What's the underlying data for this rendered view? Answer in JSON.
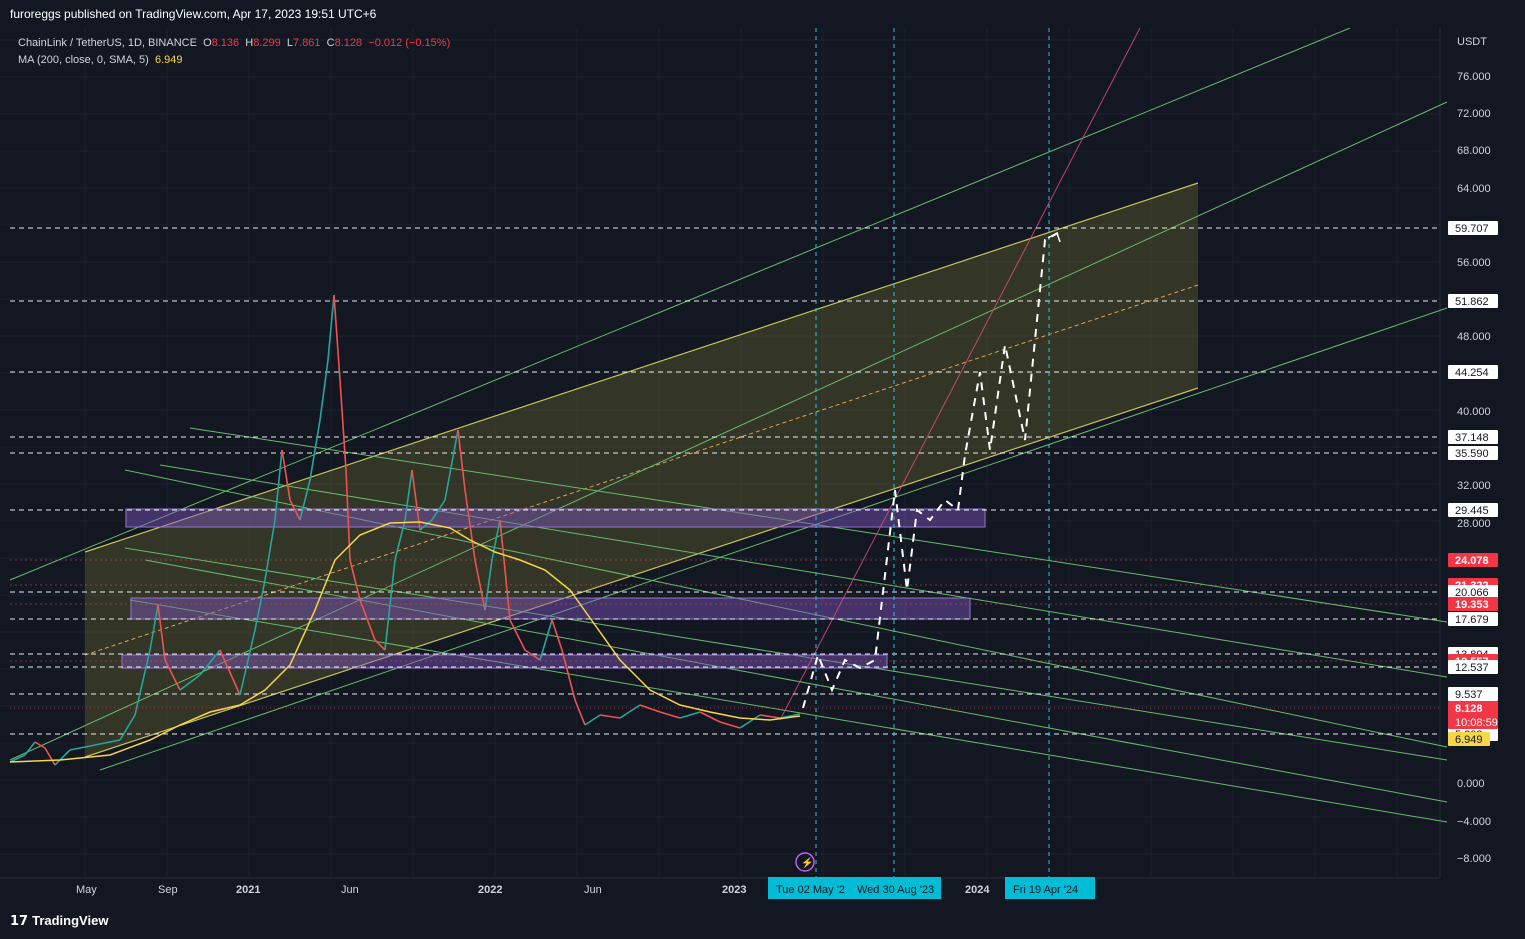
{
  "header": {
    "published": "furoreggs published on TradingView.com, Apr 17, 2023 19:51 UTC+6"
  },
  "legend": {
    "symbol": "ChainLink / TetherUS, 1D, BINANCE",
    "o_key": "O",
    "o_val": "8.136",
    "h_key": "H",
    "h_val": "8.299",
    "l_key": "L",
    "l_val": "7.861",
    "c_key": "C",
    "c_val": "8.128",
    "change": "−0.012 (−0.15%)",
    "ma_label": "MA (200, close, 0, SMA, 5)",
    "ma_value": "6.949"
  },
  "footer": {
    "logo": "TradingView",
    "logo_mark": "17"
  },
  "chart_data": {
    "type": "line",
    "title": "ChainLink / TetherUS, 1D, BINANCE",
    "currency": "USDT",
    "y_ticks": [
      "76.000",
      "72.000",
      "68.000",
      "64.000",
      "56.000",
      "48.000",
      "40.000",
      "32.000",
      "28.000",
      "0.000",
      "−4.000",
      "−8.000"
    ],
    "x_ticks": [
      "May",
      "Sep",
      "2021",
      "Jun",
      "2022",
      "Jun",
      "2023",
      "2024"
    ],
    "date_badges": [
      "Tue 02 May '2",
      "Wed 30 Aug '23",
      "Fri 19 Apr '24"
    ],
    "horizontal_levels": [
      {
        "value": "59.707",
        "style": "white"
      },
      {
        "value": "51.862",
        "style": "white"
      },
      {
        "value": "44.254",
        "style": "white"
      },
      {
        "value": "37.148",
        "style": "white"
      },
      {
        "value": "35.590",
        "style": "white"
      },
      {
        "value": "29.445",
        "style": "white"
      },
      {
        "value": "24.078",
        "style": "red"
      },
      {
        "value": "21.322",
        "style": "red"
      },
      {
        "value": "20.066",
        "style": "white"
      },
      {
        "value": "19.353",
        "style": "red"
      },
      {
        "value": "17.679",
        "style": "white"
      },
      {
        "value": "13.894",
        "style": "white"
      },
      {
        "value": "12.557",
        "style": "red"
      },
      {
        "value": "12.537",
        "style": "white"
      },
      {
        "value": "9.537",
        "style": "white"
      },
      {
        "value": "5.303",
        "style": "white"
      }
    ],
    "last_price": {
      "value": "8.128",
      "countdown": "10:08:59"
    },
    "ma_price": "6.949",
    "colors": {
      "background": "#131722",
      "grid": "#1e2230",
      "up": "#26a69a",
      "down": "#ef5350",
      "ma": "#f7d64a",
      "channel": "#66bb6a",
      "fib_fill": "#5b5a2e",
      "zone": "#7e57c2",
      "accent": "#22ab94",
      "badge": "#00bcd4"
    }
  }
}
